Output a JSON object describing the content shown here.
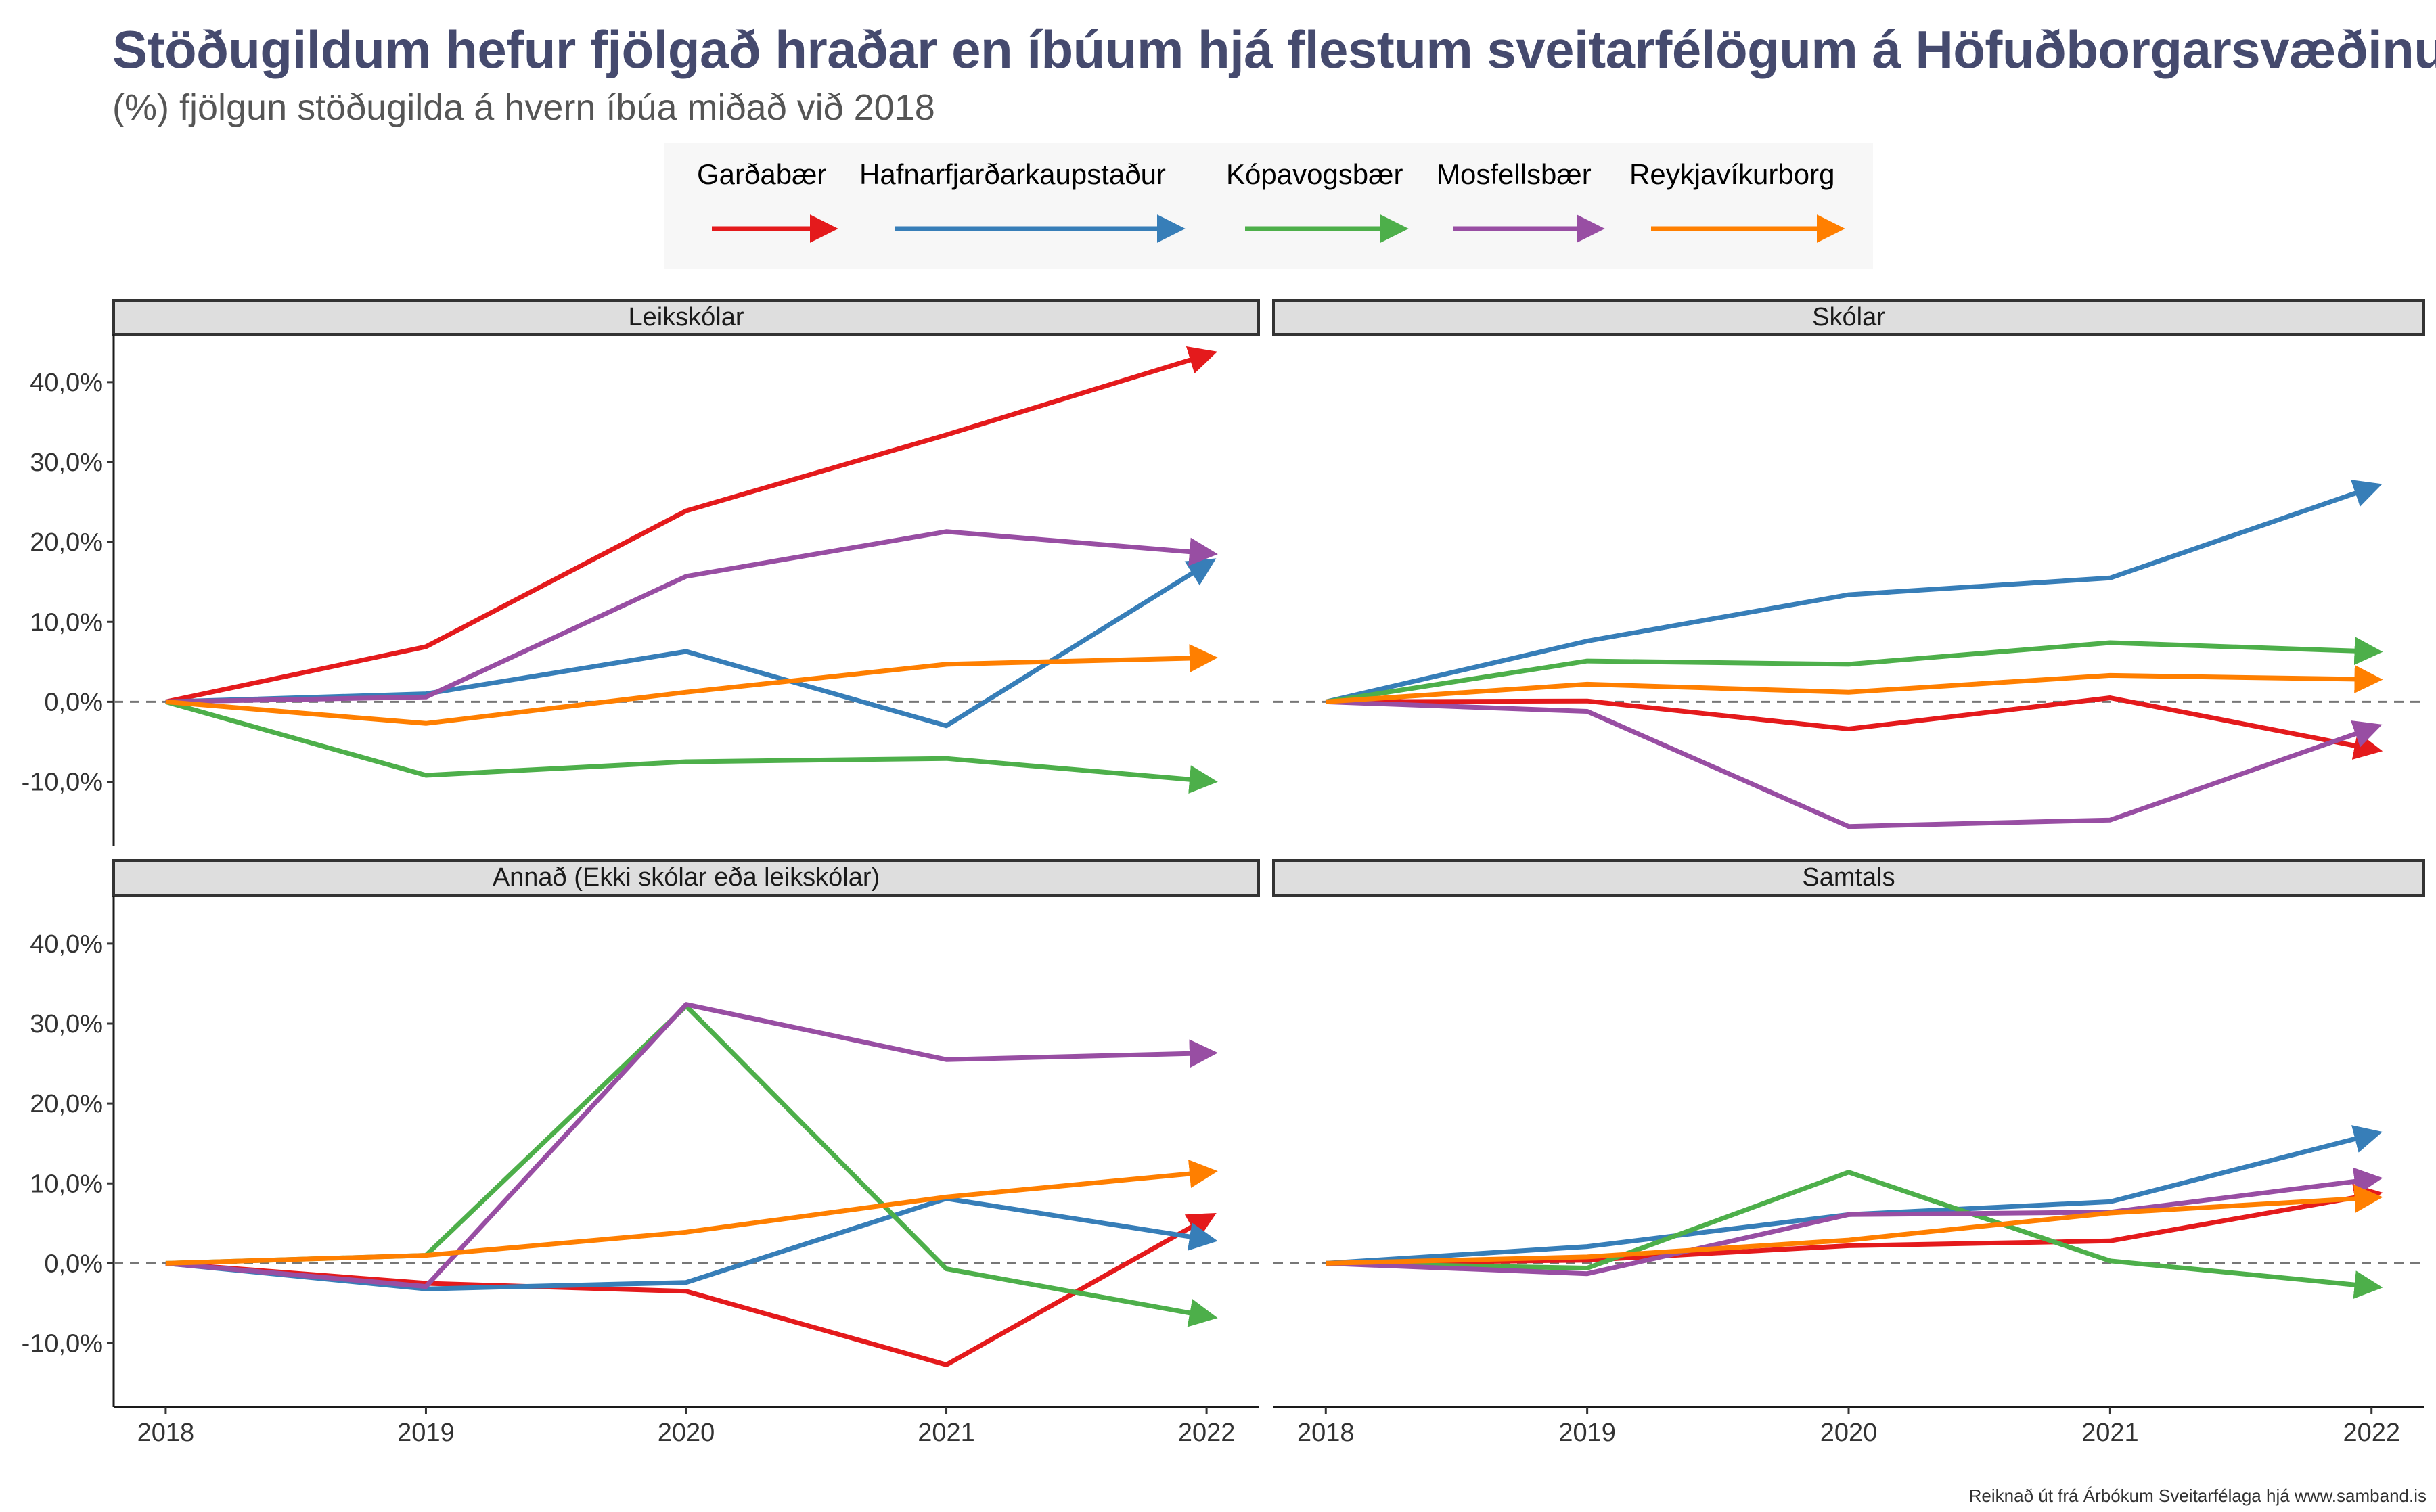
{
  "title": "Stöðugildum hefur fjölgað hraðar en íbúum hjá flestum sveitarfélögum á Höfuðborgarsvæðinu",
  "subtitle": "(%) fjölgun stöðugilda á hvern íbúa miðað við 2018",
  "caption": "Reiknað út frá Árbókum Sveitarfélaga hjá www.samband.is",
  "colors": {
    "Garðabær": "#e41a1c",
    "Hafnarfjarðarkaupstaður": "#377eb8",
    "Kópavogsbær": "#4daf4a",
    "Mosfellsbær": "#984ea3",
    "Reykjavíkurborg": "#ff7f00"
  },
  "chart_data": {
    "type": "line",
    "layout": "facet-2x2",
    "x": [
      2018,
      2019,
      2020,
      2021,
      2022
    ],
    "x_ticks": [
      "2018",
      "2019",
      "2020",
      "2021",
      "2022"
    ],
    "ylim": [
      -18,
      46
    ],
    "y_ticks": [
      -10,
      0,
      10,
      20,
      30,
      40
    ],
    "y_tick_labels": [
      "-10,0%",
      "0,0%",
      "10,0%",
      "20,0%",
      "30,0%",
      "40,0%"
    ],
    "reference_line": 0,
    "legend_position": "top",
    "legend": [
      "Garðabær",
      "Hafnarfjarðarkaupstaður",
      "Kópavogsbær",
      "Mosfellsbær",
      "Reykjavíkurborg"
    ],
    "panels": [
      {
        "name": "Leikskólar",
        "series": [
          {
            "name": "Garðabær",
            "values": [
              0,
              6.9,
              23.9,
              33.4,
              43.4
            ]
          },
          {
            "name": "Hafnarfjarðarkaupstaður",
            "values": [
              0,
              1.0,
              6.3,
              -3.0,
              17.2
            ]
          },
          {
            "name": "Kópavogsbær",
            "values": [
              0,
              -9.2,
              -7.5,
              -7.1,
              -9.9
            ]
          },
          {
            "name": "Mosfellsbær",
            "values": [
              0,
              0.6,
              15.7,
              21.3,
              18.6
            ]
          },
          {
            "name": "Reykjavíkurborg",
            "values": [
              0,
              -2.7,
              1.2,
              4.7,
              5.5
            ]
          }
        ]
      },
      {
        "name": "Skólar",
        "series": [
          {
            "name": "Garðabær",
            "values": [
              0,
              0.1,
              -3.4,
              0.5,
              -5.9
            ]
          },
          {
            "name": "Hafnarfjarðarkaupstaður",
            "values": [
              0,
              7.6,
              13.4,
              15.5,
              26.8
            ]
          },
          {
            "name": "Kópavogsbær",
            "values": [
              0,
              5.1,
              4.7,
              7.4,
              6.3
            ]
          },
          {
            "name": "Mosfellsbær",
            "values": [
              0,
              -1.2,
              -15.6,
              -14.8,
              -3.3
            ]
          },
          {
            "name": "Reykjavíkurborg",
            "values": [
              0,
              2.2,
              1.2,
              3.3,
              2.8
            ]
          }
        ]
      },
      {
        "name": "Annað (Ekki skólar eða leikskólar)",
        "series": [
          {
            "name": "Garðabær",
            "values": [
              0,
              -2.5,
              -3.5,
              -12.7,
              5.6
            ]
          },
          {
            "name": "Hafnarfjarðarkaupstaður",
            "values": [
              0,
              -3.2,
              -2.4,
              8.1,
              3.0
            ]
          },
          {
            "name": "Kópavogsbær",
            "values": [
              0,
              1.0,
              32.2,
              -0.7,
              -6.6
            ]
          },
          {
            "name": "Mosfellsbær",
            "values": [
              0,
              -2.9,
              32.4,
              25.5,
              26.3
            ]
          },
          {
            "name": "Reykjavíkurborg",
            "values": [
              0,
              1.0,
              3.9,
              8.3,
              11.4
            ]
          }
        ]
      },
      {
        "name": "Samtals",
        "series": [
          {
            "name": "Garðabær",
            "values": [
              0,
              0.4,
              2.2,
              2.8,
              8.6
            ]
          },
          {
            "name": "Hafnarfjarðarkaupstaður",
            "values": [
              0,
              2.1,
              6.1,
              7.7,
              16.1
            ]
          },
          {
            "name": "Kópavogsbær",
            "values": [
              0,
              -0.6,
              11.4,
              0.3,
              -2.9
            ]
          },
          {
            "name": "Mosfellsbær",
            "values": [
              0,
              -1.3,
              6.1,
              6.4,
              10.5
            ]
          },
          {
            "name": "Reykjavíkurborg",
            "values": [
              0,
              0.8,
              2.9,
              6.3,
              8.2
            ]
          }
        ]
      }
    ]
  }
}
